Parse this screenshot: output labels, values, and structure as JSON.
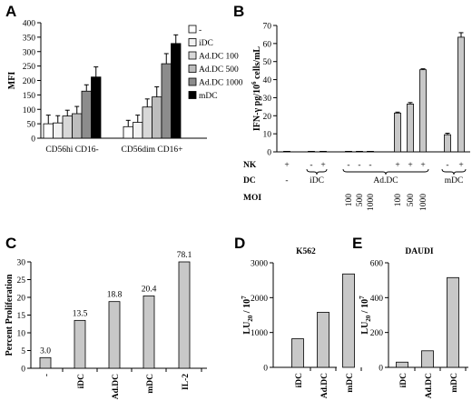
{
  "chart_data": [
    {
      "panel": "A",
      "type": "bar",
      "ylabel": "MFI",
      "ylim": [
        0,
        400
      ],
      "yticks": [
        0,
        50,
        100,
        150,
        200,
        250,
        300,
        350,
        400
      ],
      "categories": [
        "CD56hi CD16-",
        "CD56dim CD16+"
      ],
      "legend_position": "right",
      "series": [
        {
          "name": "-",
          "color": "#ffffff",
          "values": [
            50,
            40
          ],
          "errors": [
            30,
            22
          ]
        },
        {
          "name": "iDC",
          "color": "#f2f2f2",
          "values": [
            53,
            55
          ],
          "errors": [
            25,
            25
          ]
        },
        {
          "name": "Ad.DC 100",
          "color": "#d8d8d8",
          "values": [
            77,
            108
          ],
          "errors": [
            20,
            28
          ]
        },
        {
          "name": "Ad.DC 500",
          "color": "#bdbdbd",
          "values": [
            85,
            143
          ],
          "errors": [
            25,
            35
          ]
        },
        {
          "name": "Ad.DC 1000",
          "color": "#8c8c8c",
          "values": [
            163,
            258
          ],
          "errors": [
            22,
            35
          ]
        },
        {
          "name": "mDC",
          "color": "#000000",
          "values": [
            212,
            328
          ],
          "errors": [
            35,
            30
          ]
        }
      ]
    },
    {
      "panel": "B",
      "type": "bar",
      "ylabel": "IFN-γ pg/10^6 cells/mL",
      "ylim": [
        0,
        70
      ],
      "yticks": [
        0,
        10,
        20,
        30,
        40,
        50,
        60,
        70
      ],
      "row_labels": {
        "nk": "NK",
        "dc": "DC",
        "moi": "MOI"
      },
      "categories": [
        {
          "nk": "+",
          "dc": "-",
          "moi": ""
        },
        {
          "nk": "-",
          "dc": "iDC",
          "moi": ""
        },
        {
          "nk": "+",
          "dc": "iDC",
          "moi": ""
        },
        {
          "nk": "-",
          "dc": "Ad.DC",
          "moi": "100"
        },
        {
          "nk": "-",
          "dc": "Ad.DC",
          "moi": "500"
        },
        {
          "nk": "-",
          "dc": "Ad.DC",
          "moi": "1000"
        },
        {
          "nk": "+",
          "dc": "Ad.DC",
          "moi": "100"
        },
        {
          "nk": "+",
          "dc": "Ad.DC",
          "moi": "500"
        },
        {
          "nk": "+",
          "dc": "Ad.DC",
          "moi": "1000"
        },
        {
          "nk": "-",
          "dc": "mDC",
          "moi": ""
        },
        {
          "nk": "+",
          "dc": "mDC",
          "moi": ""
        }
      ],
      "values": [
        0.3,
        0.3,
        0.3,
        0.3,
        0.3,
        0.3,
        21.5,
        26.5,
        45.5,
        9.5,
        63.5
      ],
      "errors": [
        0,
        0,
        0,
        0,
        0,
        0,
        0.5,
        0.8,
        0.5,
        0.8,
        2.5
      ],
      "group_labels": [
        "iDC",
        "Ad.DC",
        "mDC"
      ]
    },
    {
      "panel": "C",
      "type": "bar",
      "ylabel": "Percent Proliferation",
      "ylim": [
        0,
        30
      ],
      "yticks": [
        0,
        5,
        10,
        15,
        20,
        25,
        30
      ],
      "categories": [
        "-",
        "iDC",
        "Ad.DC",
        "mDC",
        "IL-2"
      ],
      "values": [
        3.0,
        13.5,
        18.8,
        20.4,
        78.1
      ],
      "data_labels": [
        "3.0",
        "13.5",
        "18.8",
        "20.4",
        "78.1"
      ]
    },
    {
      "panel": "D",
      "type": "bar",
      "title": "K562",
      "ylabel": "LU20 / 10^7",
      "ylim": [
        0,
        3000
      ],
      "yticks": [
        0,
        1000,
        2000,
        3000
      ],
      "categories": [
        "iDC",
        "Ad.DC",
        "mDC"
      ],
      "values": [
        820,
        1580,
        2680
      ]
    },
    {
      "panel": "E",
      "type": "bar",
      "title": "DAUDI",
      "ylabel": "LU20 / 10^7",
      "ylim": [
        0,
        600
      ],
      "yticks": [
        0,
        200,
        400,
        600
      ],
      "categories": [
        "iDC",
        "Ad.DC",
        "mDC"
      ],
      "values": [
        30,
        95,
        515
      ]
    }
  ]
}
